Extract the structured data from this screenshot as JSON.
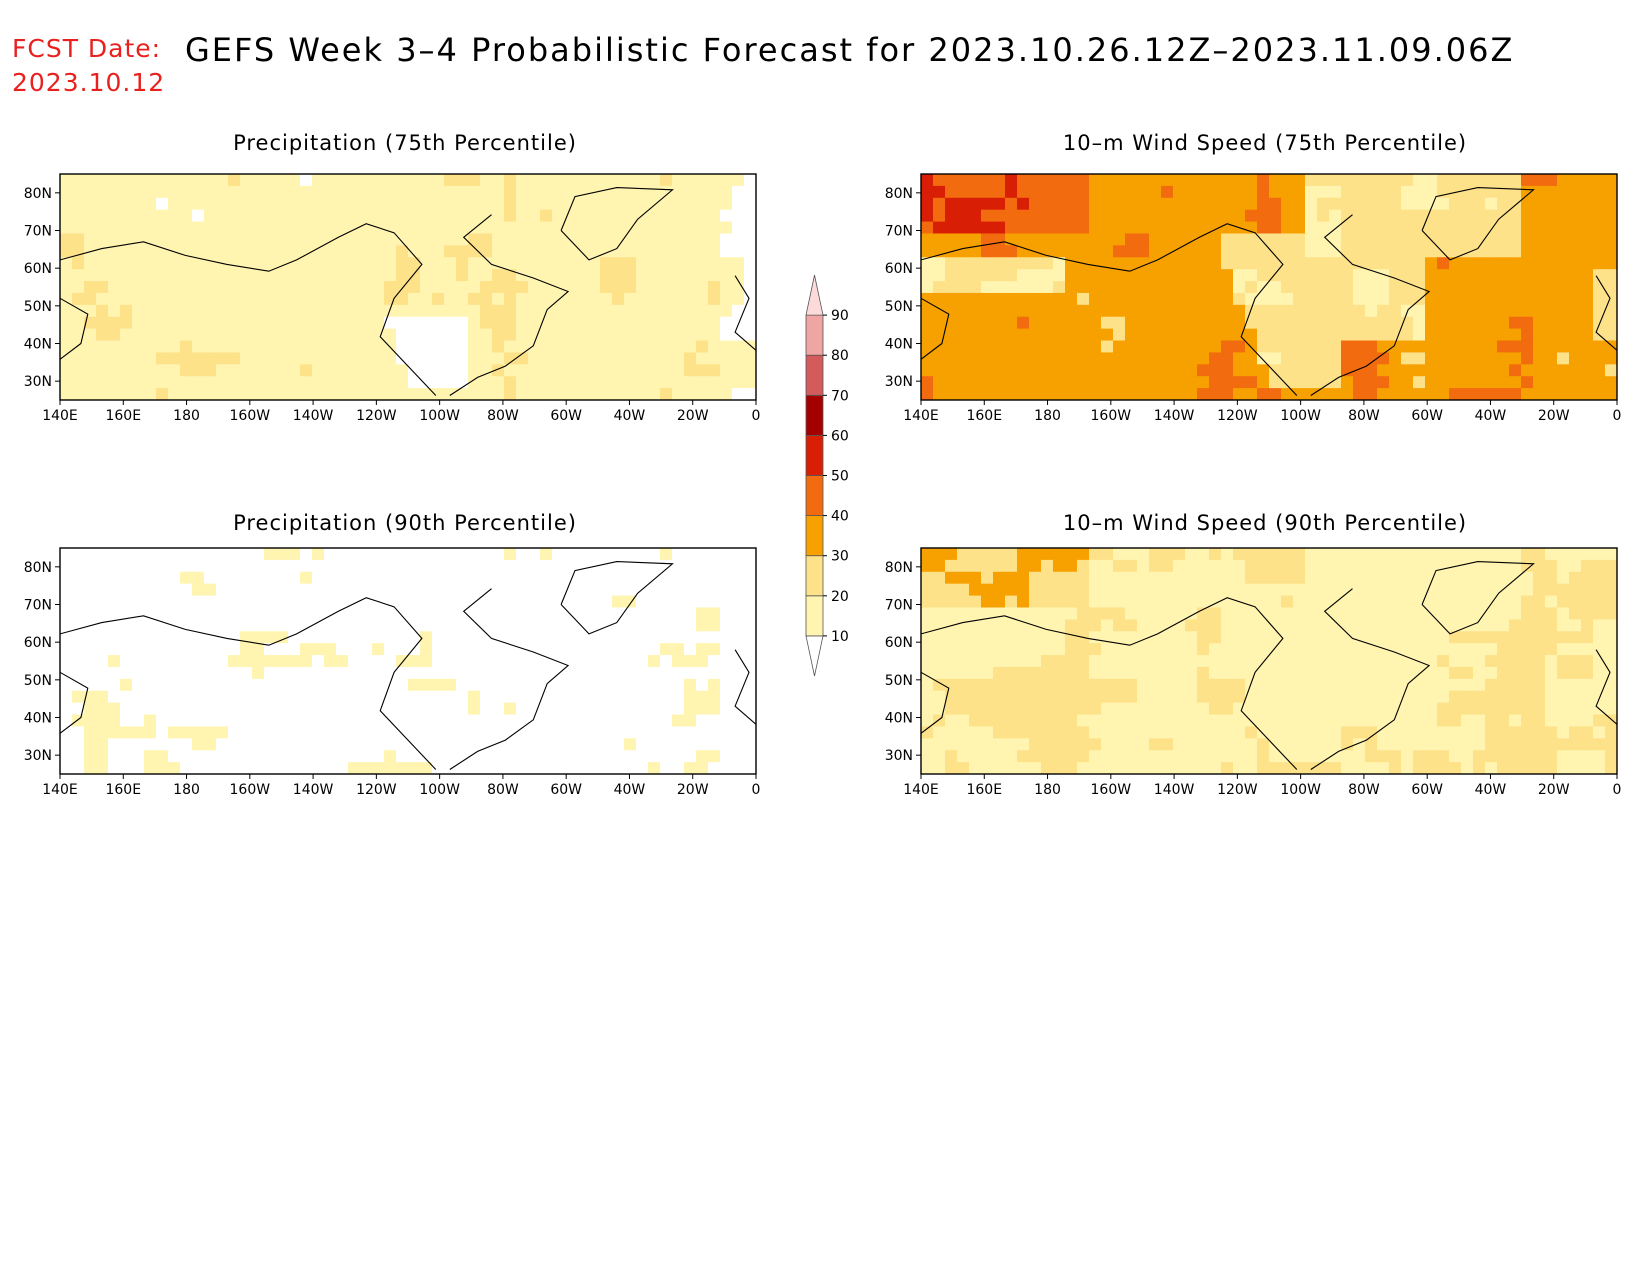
{
  "header": {
    "fcst_label": "FCST Date:",
    "fcst_date": "2023.10.12",
    "title": "GEFS Week 3–4 Probabilistic Forecast for 2023.10.26.12Z–2023.11.09.06Z"
  },
  "axes": {
    "lon_ticks": [
      "140E",
      "160E",
      "180",
      "160W",
      "140W",
      "120W",
      "100W",
      "80W",
      "60W",
      "40W",
      "20W",
      "0"
    ],
    "lat_ticks": [
      "80N",
      "70N",
      "60N",
      "50N",
      "40N",
      "30N"
    ]
  },
  "panels": [
    {
      "id": "precip75",
      "title": "Precipitation (75th Percentile)",
      "field": "precip",
      "level": 1
    },
    {
      "id": "wind75",
      "title": "10–m Wind Speed (75th Percentile)",
      "field": "wind",
      "level": 3
    },
    {
      "id": "precip90",
      "title": "Precipitation (90th Percentile)",
      "field": "precip",
      "level": 0
    },
    {
      "id": "wind90",
      "title": "10–m Wind Speed (90th Percentile)",
      "field": "wind",
      "level": 1
    }
  ],
  "colorbar": {
    "labels": [
      "10",
      "20",
      "30",
      "40",
      "50",
      "60",
      "70",
      "80",
      "90"
    ],
    "colors": [
      "#ffffff",
      "#fff4b0",
      "#fde28a",
      "#f6a100",
      "#f26b0f",
      "#d81e05",
      "#a50000",
      "#d45b5b",
      "#f0a5a5",
      "#fcdada"
    ]
  },
  "chart_data": {
    "type": "heatmap",
    "title": "GEFS Week 3–4 Probabilistic Forecast for 2023.10.26.12Z–2023.11.09.06Z",
    "x_range": [
      "140E",
      "0"
    ],
    "y_range": [
      "25N",
      "85N"
    ],
    "levels": [
      10,
      20,
      30,
      40,
      50,
      60,
      70,
      80,
      90
    ]
  }
}
